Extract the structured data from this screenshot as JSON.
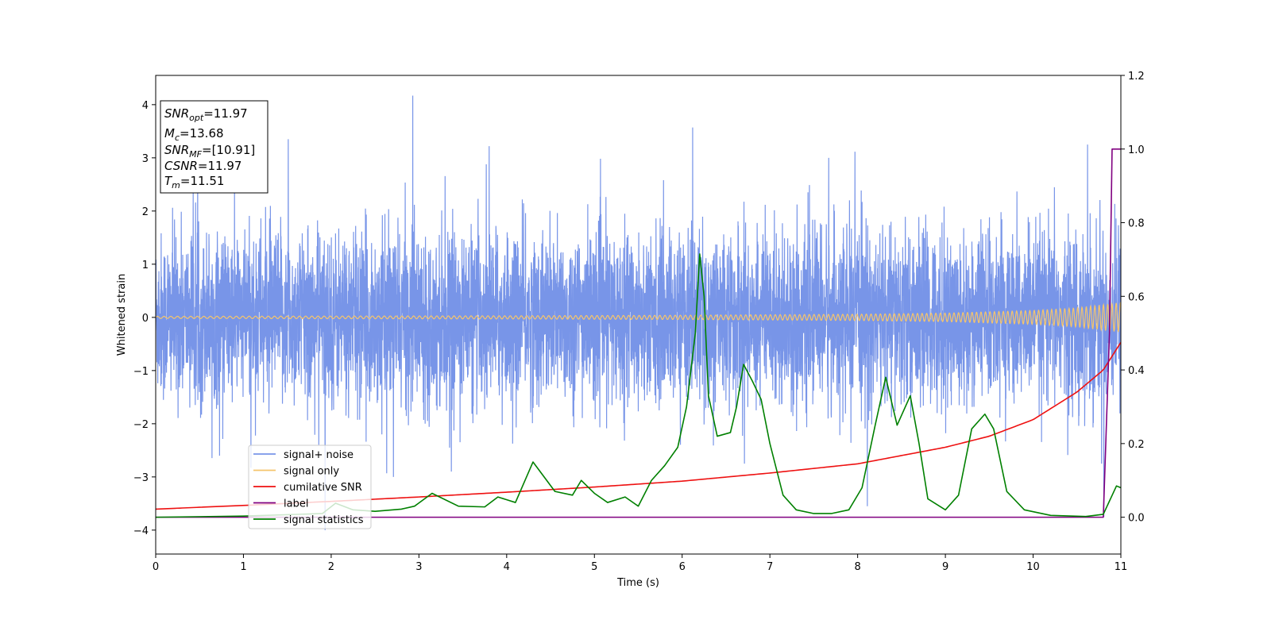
{
  "chart_data": {
    "type": "line",
    "title": "",
    "xlabel": "Time (s)",
    "ylabel": "Whitened strain",
    "xlim": [
      0,
      11
    ],
    "ylim": [
      -4.45,
      4.55
    ],
    "y2lim": [
      -0.1,
      1.2
    ],
    "grid": false,
    "legend_placement": "lower-left",
    "x_ticks": [
      0,
      1,
      2,
      3,
      4,
      5,
      6,
      7,
      8,
      9,
      10,
      11
    ],
    "y_ticks": [
      -4,
      -3,
      -2,
      -1,
      0,
      1,
      2,
      3,
      4
    ],
    "y2_ticks": [
      "0.0",
      "0.2",
      "0.4",
      "0.6",
      "0.8",
      "1.0",
      "1.2"
    ],
    "info_box": [
      {
        "sym": "SNR",
        "sub": "opt",
        "value": "=11.97"
      },
      {
        "sym": "M",
        "sub": "c",
        "value": "=13.68"
      },
      {
        "sym": "SNR",
        "sub": "MF",
        "value": "=[10.91]"
      },
      {
        "sym": "CSNR",
        "sub": "",
        "value": "=11.97"
      },
      {
        "sym": "T",
        "sub": "m",
        "value": "=11.51"
      }
    ],
    "series": [
      {
        "name": "signal+ noise",
        "color": "#7895e8",
        "axis": "left",
        "noise_amplitude_typical": 1.3,
        "noise_amplitude_max": 4.17,
        "notable_peaks": [
          [
            2.93,
            4.17
          ],
          [
            6.12,
            3.57
          ],
          [
            1.51,
            3.35
          ],
          [
            3.8,
            3.22
          ],
          [
            10.62,
            3.25
          ],
          [
            7.67,
            3.0
          ],
          [
            1.93,
            -4.0
          ],
          [
            8.11,
            -3.55
          ],
          [
            2.71,
            -3.0
          ],
          [
            3.37,
            -2.9
          ],
          [
            10.78,
            -2.75
          ],
          [
            6.71,
            -2.75
          ]
        ]
      },
      {
        "name": "signal only",
        "color": "#f5c56b",
        "axis": "left",
        "envelope": [
          [
            0,
            0.02
          ],
          [
            2,
            0.025
          ],
          [
            4,
            0.03
          ],
          [
            6,
            0.04
          ],
          [
            8,
            0.06
          ],
          [
            9,
            0.08
          ],
          [
            10,
            0.13
          ],
          [
            10.5,
            0.18
          ],
          [
            11,
            0.28
          ]
        ]
      },
      {
        "name": "cumilative SNR",
        "color": "#ee1111",
        "axis": "right",
        "points": [
          [
            0,
            0.022
          ],
          [
            1,
            0.032
          ],
          [
            2,
            0.043
          ],
          [
            3,
            0.055
          ],
          [
            4,
            0.068
          ],
          [
            5,
            0.082
          ],
          [
            6,
            0.098
          ],
          [
            7,
            0.12
          ],
          [
            8,
            0.145
          ],
          [
            9,
            0.19
          ],
          [
            9.5,
            0.22
          ],
          [
            10,
            0.265
          ],
          [
            10.5,
            0.34
          ],
          [
            10.8,
            0.4
          ],
          [
            11,
            0.475
          ]
        ]
      },
      {
        "name": "label",
        "color": "#800080",
        "axis": "right",
        "points": [
          [
            0,
            0.0
          ],
          [
            10.8,
            0.0
          ],
          [
            10.87,
            0.5
          ],
          [
            10.9,
            1.0
          ],
          [
            11,
            1.0
          ]
        ]
      },
      {
        "name": "signal statistics",
        "color": "#008000",
        "axis": "right",
        "points": [
          [
            0,
            0.0
          ],
          [
            1,
            0.003
          ],
          [
            1.9,
            0.01
          ],
          [
            2.05,
            0.038
          ],
          [
            2.25,
            0.02
          ],
          [
            2.5,
            0.016
          ],
          [
            2.8,
            0.022
          ],
          [
            2.95,
            0.03
          ],
          [
            3.15,
            0.065
          ],
          [
            3.45,
            0.03
          ],
          [
            3.75,
            0.028
          ],
          [
            3.9,
            0.055
          ],
          [
            4.1,
            0.04
          ],
          [
            4.3,
            0.15
          ],
          [
            4.55,
            0.07
          ],
          [
            4.75,
            0.06
          ],
          [
            4.85,
            0.1
          ],
          [
            5.0,
            0.065
          ],
          [
            5.15,
            0.04
          ],
          [
            5.35,
            0.055
          ],
          [
            5.5,
            0.03
          ],
          [
            5.65,
            0.1
          ],
          [
            5.8,
            0.14
          ],
          [
            5.95,
            0.19
          ],
          [
            6.05,
            0.3
          ],
          [
            6.15,
            0.5
          ],
          [
            6.2,
            0.715
          ],
          [
            6.25,
            0.6
          ],
          [
            6.3,
            0.33
          ],
          [
            6.4,
            0.22
          ],
          [
            6.55,
            0.23
          ],
          [
            6.62,
            0.3
          ],
          [
            6.7,
            0.415
          ],
          [
            6.8,
            0.37
          ],
          [
            6.9,
            0.32
          ],
          [
            7.0,
            0.2
          ],
          [
            7.15,
            0.06
          ],
          [
            7.3,
            0.02
          ],
          [
            7.5,
            0.01
          ],
          [
            7.7,
            0.01
          ],
          [
            7.9,
            0.02
          ],
          [
            8.05,
            0.08
          ],
          [
            8.2,
            0.25
          ],
          [
            8.32,
            0.38
          ],
          [
            8.45,
            0.25
          ],
          [
            8.6,
            0.33
          ],
          [
            8.7,
            0.2
          ],
          [
            8.8,
            0.05
          ],
          [
            9.0,
            0.02
          ],
          [
            9.15,
            0.06
          ],
          [
            9.3,
            0.24
          ],
          [
            9.45,
            0.28
          ],
          [
            9.55,
            0.24
          ],
          [
            9.7,
            0.07
          ],
          [
            9.9,
            0.02
          ],
          [
            10.2,
            0.005
          ],
          [
            10.6,
            0.002
          ],
          [
            10.8,
            0.008
          ],
          [
            10.95,
            0.085
          ],
          [
            11,
            0.08
          ]
        ]
      }
    ]
  }
}
